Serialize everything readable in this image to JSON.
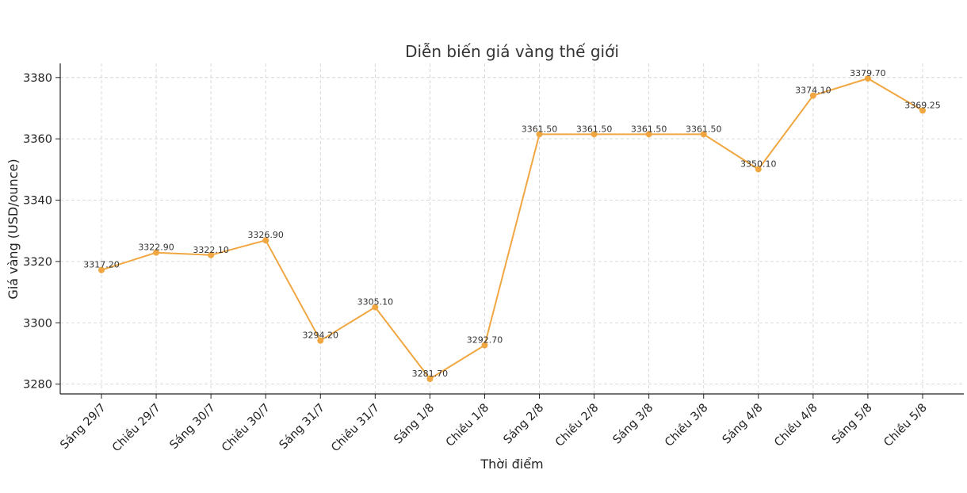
{
  "chart_data": {
    "type": "line",
    "title": "Diễn biến giá vàng thế giới",
    "xlabel": "Thời điểm",
    "ylabel": "Giá vàng (USD/ounce)",
    "categories": [
      "Sáng 29/7",
      "Chiều 29/7",
      "Sáng 30/7",
      "Chiều 30/7",
      "Sáng 31/7",
      "Chiều 31/7",
      "Sáng 1/8",
      "Chiều 1/8",
      "Sáng 2/8",
      "Chiều 2/8",
      "Sáng 3/8",
      "Chiều 3/8",
      "Sáng 4/8",
      "Chiều 4/8",
      "Sáng 5/8",
      "Chiều 5/8"
    ],
    "series": [
      {
        "values": [
          3317.2,
          3322.9,
          3322.1,
          3326.9,
          3294.2,
          3305.1,
          3281.7,
          3292.7,
          3361.5,
          3361.5,
          3361.5,
          3361.5,
          3350.1,
          3374.1,
          3379.7,
          3369.25
        ],
        "labels": [
          "3317.20",
          "3322.90",
          "3322.10",
          "3326.90",
          "3294.20",
          "3305.10",
          "3281.70",
          "3292.70",
          "3361.50",
          "3361.50",
          "3361.50",
          "3361.50",
          "3350.10",
          "3374.10",
          "3379.70",
          "3369.25"
        ],
        "color": "#f0a742"
      }
    ],
    "ylim": [
      3276.8,
      3384.6
    ],
    "yticks": [
      3280,
      3300,
      3320,
      3340,
      3360,
      3380
    ],
    "grid": true,
    "legend": "none"
  }
}
